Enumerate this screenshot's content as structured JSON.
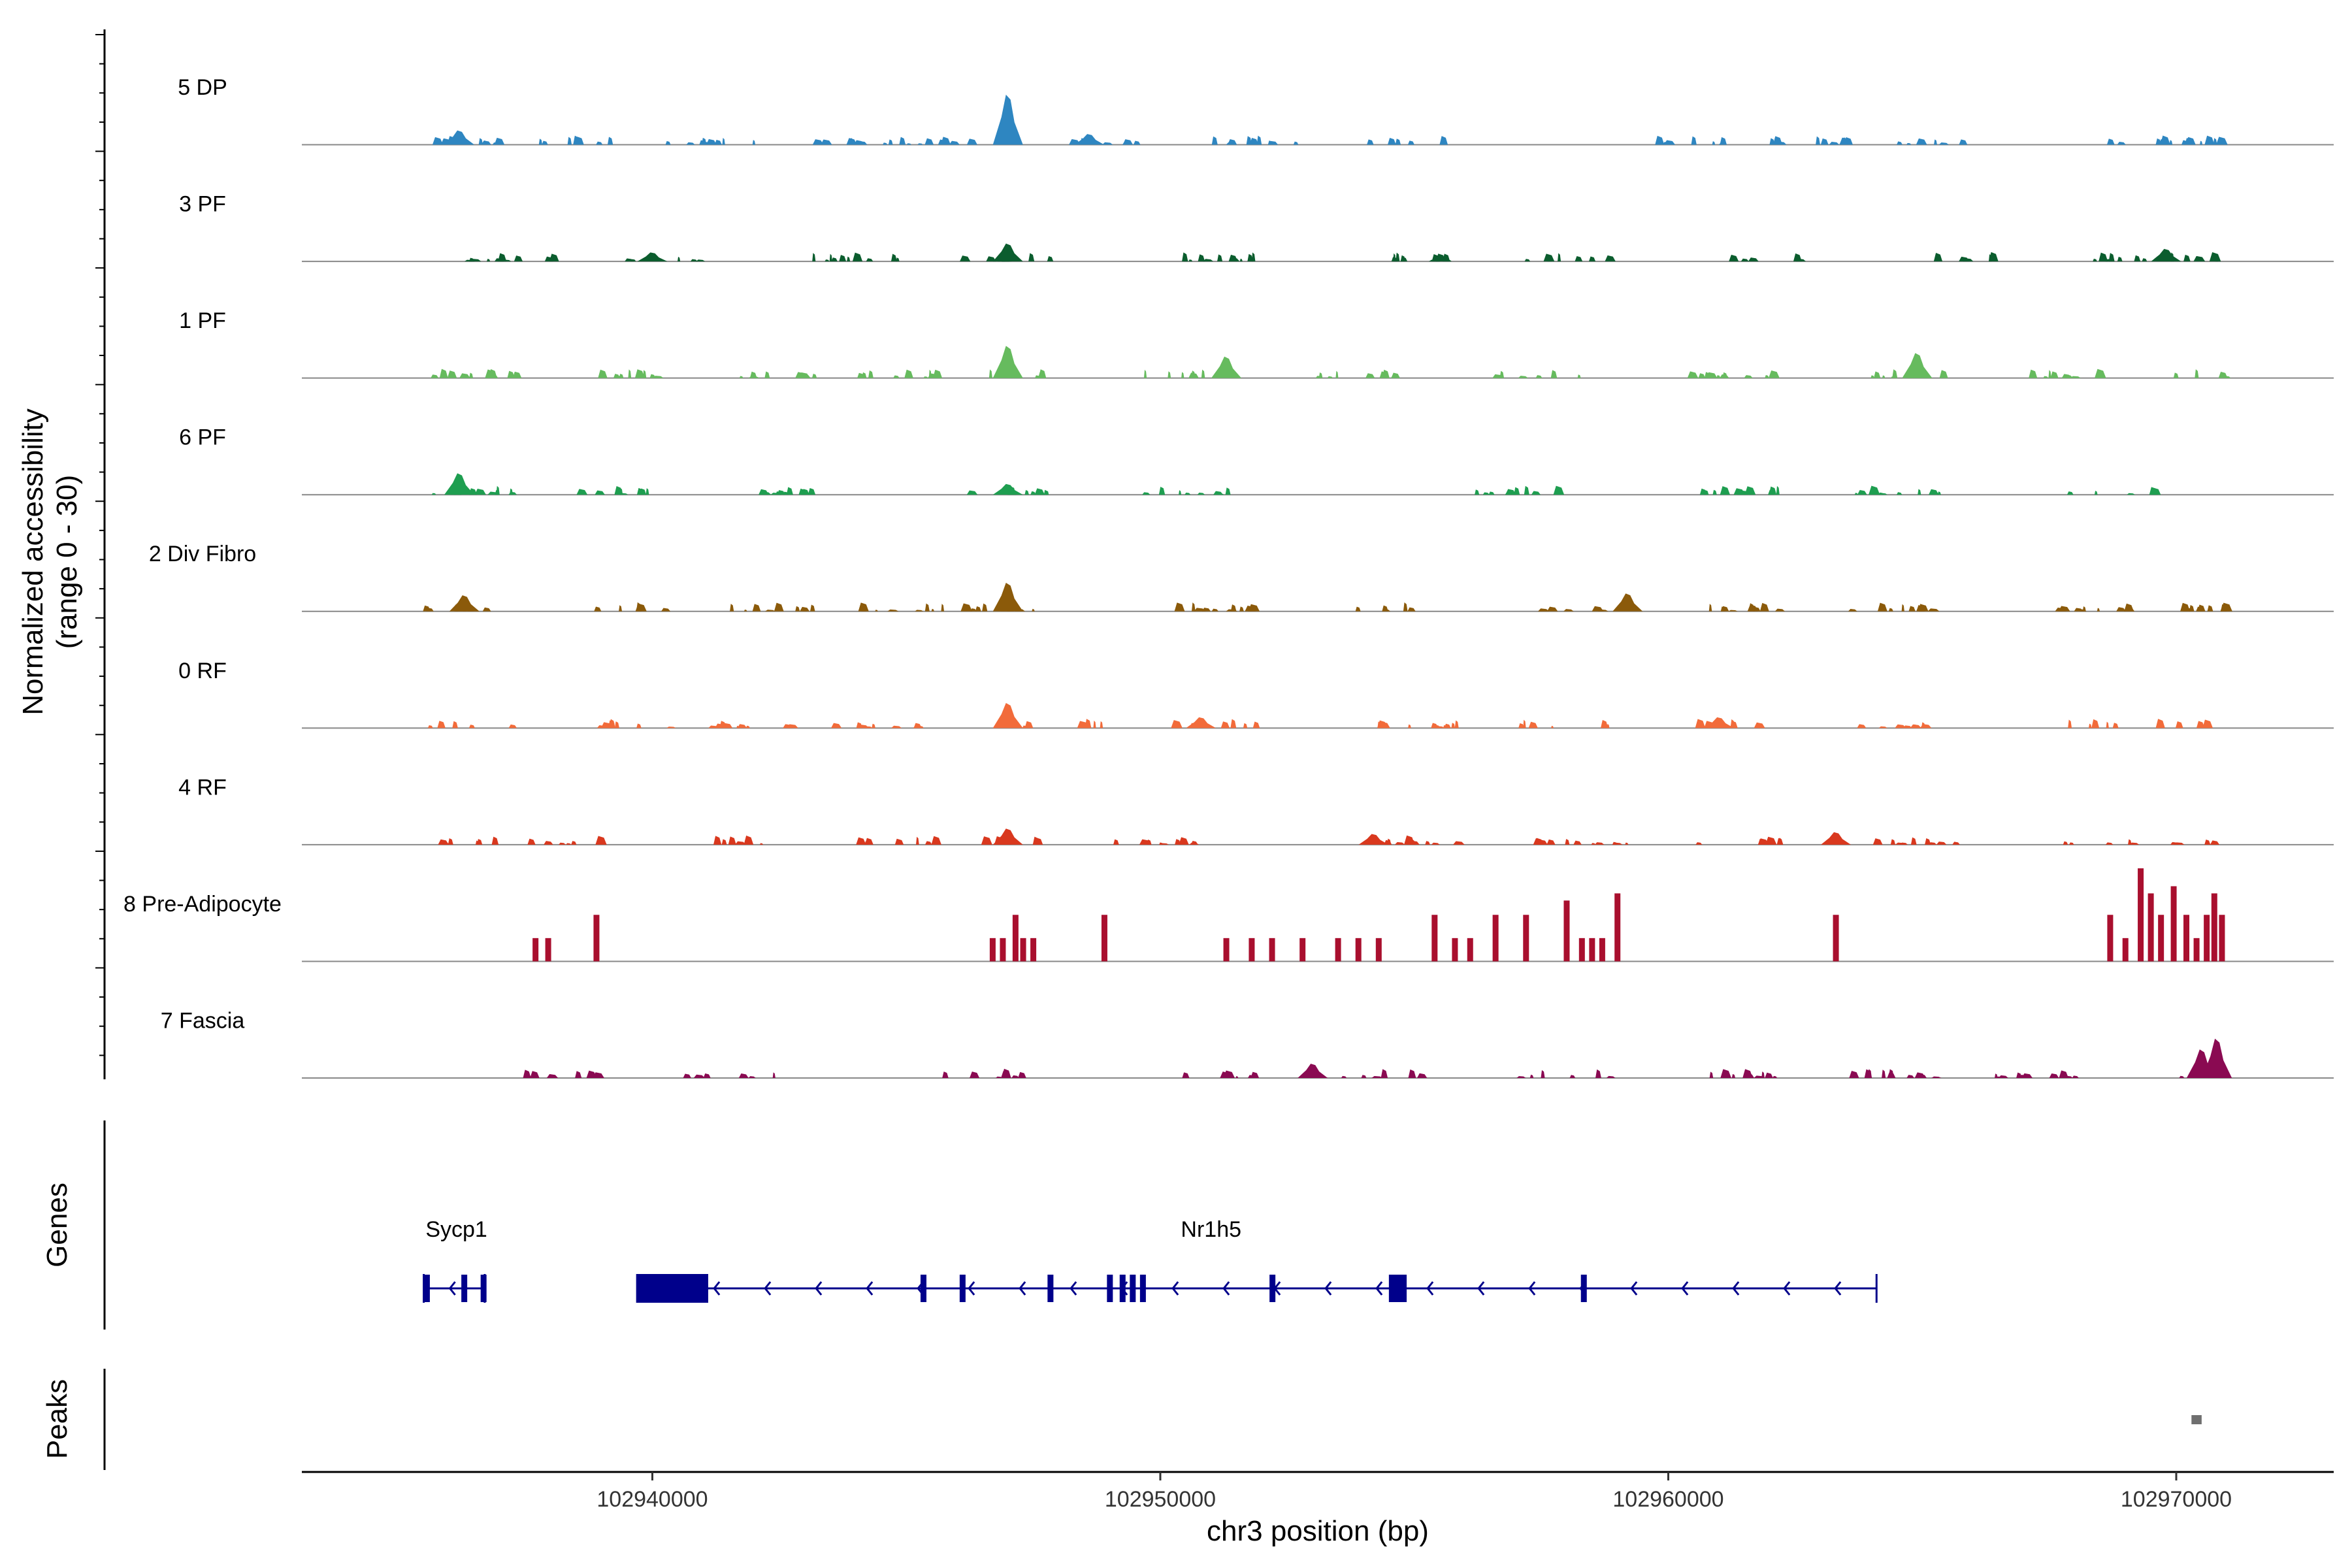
{
  "chart_data": {
    "type": "area",
    "title": "",
    "xlabel": "chr3 position (bp)",
    "ylabel": "Normalized accessibility",
    "ylabel_range": "(range 0 - 30)",
    "xlim": [
      102933100,
      102973100
    ],
    "ylim": [
      0,
      30
    ],
    "x_ticks": [
      102940000,
      102950000,
      102960000,
      102970000
    ],
    "x_tick_labels": [
      "102940000",
      "102950000",
      "102960000",
      "102970000"
    ],
    "coverage_start": 102935500,
    "coverage_end": 102971000,
    "panel_labels": {
      "genes": "Genes",
      "peaks": "Peaks"
    },
    "tracks": [
      {
        "name": "5 DP",
        "color": "#2E86C1",
        "mode": "scatter",
        "clusters": [
          102936300,
          102938500,
          102941200,
          102943800,
          102945400,
          102949000,
          102951800,
          102954800,
          102960200,
          102962900,
          102965300,
          102969400,
          102970500
        ],
        "peaks": [
          {
            "x": 102947000,
            "h": 14
          },
          {
            "x": 102936200,
            "h": 4
          },
          {
            "x": 102948600,
            "h": 3
          }
        ]
      },
      {
        "name": "3 PF",
        "color": "#0B5D2E",
        "mode": "scatter",
        "clusters": [
          102937200,
          102940200,
          102944000,
          102947000,
          102951000,
          102955500,
          102958000,
          102962000,
          102965700,
          102969000,
          102970800
        ],
        "peaks": [
          {
            "x": 102947000,
            "h": 5
          },
          {
            "x": 102940000,
            "h": 2.5
          },
          {
            "x": 102969800,
            "h": 3.5
          }
        ]
      },
      {
        "name": "1 PF",
        "color": "#66BB5E",
        "mode": "scatter",
        "clusters": [
          102936500,
          102939500,
          102942500,
          102945000,
          102947500,
          102950500,
          102954000,
          102957500,
          102961300,
          102964600,
          102968000,
          102970800
        ],
        "peaks": [
          {
            "x": 102947000,
            "h": 9
          },
          {
            "x": 102964900,
            "h": 7
          },
          {
            "x": 102951300,
            "h": 6
          }
        ]
      },
      {
        "name": "6 PF",
        "color": "#1E9E50",
        "mode": "scatter",
        "clusters": [
          102936400,
          102939500,
          102942500,
          102947000,
          102950500,
          102957000,
          102961500,
          102964500,
          102968800
        ],
        "peaks": [
          {
            "x": 102936200,
            "h": 6
          },
          {
            "x": 102947000,
            "h": 3
          }
        ]
      },
      {
        "name": "2 Div Fibro",
        "color": "#8B5A0A",
        "mode": "scatter",
        "clusters": [
          102936200,
          102939500,
          102942400,
          102945000,
          102947000,
          102951000,
          102954600,
          102958300,
          102961300,
          102964500,
          102968500,
          102970400
        ],
        "peaks": [
          {
            "x": 102947000,
            "h": 8
          },
          {
            "x": 102959200,
            "h": 5
          },
          {
            "x": 102936300,
            "h": 4.5
          }
        ]
      },
      {
        "name": "0 RF",
        "color": "#F26B3A",
        "mode": "scatter",
        "clusters": [
          102936500,
          102939500,
          102942000,
          102944500,
          102948000,
          102951000,
          102955000,
          102958000,
          102961000,
          102964500,
          102968000,
          102970500
        ],
        "peaks": [
          {
            "x": 102947000,
            "h": 7
          },
          {
            "x": 102950800,
            "h": 3
          },
          {
            "x": 102961000,
            "h": 3
          }
        ]
      },
      {
        "name": "4 RF",
        "color": "#D9381E",
        "mode": "scatter",
        "clusters": [
          102936500,
          102938500,
          102941500,
          102944800,
          102947000,
          102950000,
          102955000,
          102958300,
          102961500,
          102965000,
          102968500,
          102970800
        ],
        "peaks": [
          {
            "x": 102947000,
            "h": 4.5
          },
          {
            "x": 102954200,
            "h": 3
          },
          {
            "x": 102963300,
            "h": 3.5
          }
        ]
      },
      {
        "name": "8 Pre-Adipocyte",
        "color": "#A90F2E",
        "mode": "bars",
        "bars": [
          {
            "x": 102937700,
            "h": 6.5
          },
          {
            "x": 102937950,
            "h": 6.5
          },
          {
            "x": 102938900,
            "h": 13
          },
          {
            "x": 102946700,
            "h": 6.5
          },
          {
            "x": 102946900,
            "h": 6.5
          },
          {
            "x": 102947150,
            "h": 13
          },
          {
            "x": 102947300,
            "h": 6.5
          },
          {
            "x": 102947500,
            "h": 6.5
          },
          {
            "x": 102948900,
            "h": 13
          },
          {
            "x": 102951300,
            "h": 6.5
          },
          {
            "x": 102951800,
            "h": 6.5
          },
          {
            "x": 102952200,
            "h": 6.5
          },
          {
            "x": 102952800,
            "h": 6.5
          },
          {
            "x": 102953500,
            "h": 6.5
          },
          {
            "x": 102953900,
            "h": 6.5
          },
          {
            "x": 102954300,
            "h": 6.5
          },
          {
            "x": 102955400,
            "h": 13
          },
          {
            "x": 102955800,
            "h": 6.5
          },
          {
            "x": 102956100,
            "h": 6.5
          },
          {
            "x": 102956600,
            "h": 13
          },
          {
            "x": 102957200,
            "h": 13
          },
          {
            "x": 102958000,
            "h": 17
          },
          {
            "x": 102958300,
            "h": 6.5
          },
          {
            "x": 102958500,
            "h": 6.5
          },
          {
            "x": 102958700,
            "h": 6.5
          },
          {
            "x": 102959000,
            "h": 19
          },
          {
            "x": 102963300,
            "h": 13
          },
          {
            "x": 102968700,
            "h": 13
          },
          {
            "x": 102969000,
            "h": 6.5
          },
          {
            "x": 102969300,
            "h": 26
          },
          {
            "x": 102969500,
            "h": 19
          },
          {
            "x": 102969700,
            "h": 13
          },
          {
            "x": 102969950,
            "h": 21
          },
          {
            "x": 102970200,
            "h": 13
          },
          {
            "x": 102970400,
            "h": 6.5
          },
          {
            "x": 102970600,
            "h": 13
          },
          {
            "x": 102970750,
            "h": 19
          },
          {
            "x": 102970900,
            "h": 13
          }
        ]
      },
      {
        "name": "7 Fascia",
        "color": "#8A0A52",
        "mode": "scatter",
        "clusters": [
          102938300,
          102941500,
          102946500,
          102951000,
          102954500,
          102958000,
          102961200,
          102964500,
          102967300,
          102970600
        ],
        "peaks": [
          {
            "x": 102970800,
            "h": 11
          },
          {
            "x": 102970500,
            "h": 8
          },
          {
            "x": 102953000,
            "h": 4
          }
        ]
      }
    ],
    "genes": [
      {
        "name": "Sycp1",
        "start": 102935500,
        "end": 102936700,
        "strand": "-",
        "exons": [
          [
            102935500,
            102935620
          ],
          [
            102936240,
            102936340
          ],
          [
            102936620,
            102936700
          ]
        ]
      },
      {
        "name": "Nr1h5",
        "start": 102939700,
        "end": 102964100,
        "strand": "-",
        "exons": [
          [
            102939700,
            102941100
          ],
          [
            102945280,
            102945380
          ],
          [
            102946050,
            102946150
          ],
          [
            102947780,
            102947880
          ],
          [
            102948950,
            102949030
          ],
          [
            102949200,
            102949280
          ],
          [
            102949400,
            102949480
          ],
          [
            102949600,
            102949680
          ],
          [
            102952150,
            102952250
          ],
          [
            102954500,
            102954850
          ],
          [
            102958280,
            102958380
          ]
        ]
      }
    ],
    "peak_regions": [
      {
        "start": 102970300,
        "end": 102970500
      }
    ]
  }
}
